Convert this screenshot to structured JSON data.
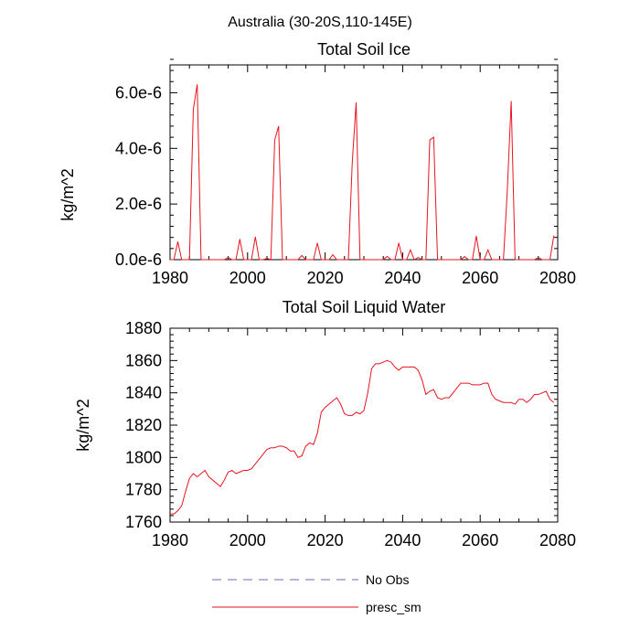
{
  "figure": {
    "title": "Australia (30-20S,110-145E)"
  },
  "chart_data": [
    {
      "type": "line",
      "title": "Total Soil Ice",
      "xlabel": "",
      "ylabel": "kg/m^2",
      "xlim": [
        1980,
        2080
      ],
      "ylim": [
        0,
        7e-06
      ],
      "xticks": [
        1980,
        2000,
        2020,
        2040,
        2060,
        2080
      ],
      "xtick_labels": [
        "1980",
        "2000",
        "2020",
        "2040",
        "2060",
        "2080"
      ],
      "yticks": [
        0,
        2e-06,
        4e-06,
        6e-06
      ],
      "ytick_labels": [
        "0.0e-6",
        "2.0e-6",
        "4.0e-6",
        "6.0e-6"
      ],
      "series": [
        {
          "name": "presc_sm",
          "color": "#e8141e",
          "x": [
            1980,
            1981,
            1982,
            1983,
            1984,
            1985,
            1986,
            1987,
            1988,
            1989,
            1990,
            1991,
            1992,
            1993,
            1994,
            1995,
            1996,
            1997,
            1998,
            1999,
            2000,
            2001,
            2002,
            2003,
            2004,
            2005,
            2006,
            2007,
            2008,
            2009,
            2010,
            2011,
            2012,
            2013,
            2014,
            2015,
            2016,
            2017,
            2018,
            2019,
            2020,
            2021,
            2022,
            2023,
            2024,
            2025,
            2026,
            2027,
            2028,
            2029,
            2030,
            2031,
            2032,
            2033,
            2034,
            2035,
            2036,
            2037,
            2038,
            2039,
            2040,
            2041,
            2042,
            2043,
            2044,
            2045,
            2046,
            2047,
            2048,
            2049,
            2050,
            2051,
            2052,
            2053,
            2054,
            2055,
            2056,
            2057,
            2058,
            2059,
            2060,
            2061,
            2062,
            2063,
            2064,
            2065,
            2066,
            2067,
            2068,
            2069,
            2070,
            2071,
            2072,
            2073,
            2074,
            2075,
            2076,
            2077,
            2078,
            2079
          ],
          "y": [
            0,
            0,
            6.5e-07,
            0,
            0,
            0,
            5.4e-06,
            6.3e-06,
            0,
            0,
            0,
            0,
            0,
            0,
            0,
            8e-08,
            0,
            0,
            7.4e-07,
            0,
            0,
            0,
            8.2e-07,
            0,
            0,
            5e-08,
            0,
            4.3e-06,
            4.8e-06,
            0,
            0,
            0,
            0,
            0,
            1.5e-07,
            0,
            0,
            0,
            6e-07,
            0,
            0,
            0,
            1.8e-07,
            0,
            0,
            0,
            0,
            3.5e-06,
            5.65e-06,
            0,
            0,
            0,
            0,
            0,
            0,
            0,
            1.2e-07,
            0,
            0,
            6e-07,
            0,
            0,
            3.5e-07,
            0,
            8e-08,
            0,
            0,
            4.3e-06,
            4.4e-06,
            0,
            0,
            0,
            0,
            0,
            0,
            0,
            1.1e-07,
            0,
            0,
            8.5e-07,
            0,
            0,
            3.5e-07,
            0,
            0,
            0,
            0,
            2.5e-06,
            5.7e-06,
            0,
            0,
            0,
            0,
            0,
            0,
            8e-08,
            0,
            0,
            0,
            8.7e-07
          ]
        }
      ]
    },
    {
      "type": "line",
      "title": "Total Soil Liquid Water",
      "xlabel": "",
      "ylabel": "kg/m^2",
      "xlim": [
        1980,
        2080
      ],
      "ylim": [
        1760,
        1880
      ],
      "xticks": [
        1980,
        2000,
        2020,
        2040,
        2060,
        2080
      ],
      "xtick_labels": [
        "1980",
        "2000",
        "2020",
        "2040",
        "2060",
        "2080"
      ],
      "yticks": [
        1760,
        1780,
        1800,
        1820,
        1840,
        1860,
        1880
      ],
      "ytick_labels": [
        "1760",
        "1780",
        "1800",
        "1820",
        "1840",
        "1860",
        "1880"
      ],
      "series": [
        {
          "name": "presc_sm",
          "color": "#e8141e",
          "x": [
            1980,
            1981,
            1982,
            1983,
            1984,
            1985,
            1986,
            1987,
            1988,
            1989,
            1990,
            1991,
            1992,
            1993,
            1994,
            1995,
            1996,
            1997,
            1998,
            1999,
            2000,
            2001,
            2002,
            2003,
            2004,
            2005,
            2006,
            2007,
            2008,
            2009,
            2010,
            2011,
            2012,
            2013,
            2014,
            2015,
            2016,
            2017,
            2018,
            2019,
            2020,
            2021,
            2022,
            2023,
            2024,
            2025,
            2026,
            2027,
            2028,
            2029,
            2030,
            2031,
            2032,
            2033,
            2034,
            2035,
            2036,
            2037,
            2038,
            2039,
            2040,
            2041,
            2042,
            2043,
            2044,
            2045,
            2046,
            2047,
            2048,
            2049,
            2050,
            2051,
            2052,
            2053,
            2054,
            2055,
            2056,
            2057,
            2058,
            2059,
            2060,
            2061,
            2062,
            2063,
            2064,
            2065,
            2066,
            2067,
            2068,
            2069,
            2070,
            2071,
            2072,
            2073,
            2074,
            2075,
            2076,
            2077,
            2078,
            2079
          ],
          "y": [
            1765,
            1765,
            1767,
            1770,
            1779,
            1787,
            1790,
            1788,
            1790,
            1792,
            1788,
            1786,
            1784,
            1782,
            1786,
            1791,
            1792,
            1790,
            1791,
            1792,
            1792,
            1793,
            1796,
            1799,
            1802,
            1805,
            1806,
            1806,
            1807,
            1807,
            1806,
            1804,
            1804,
            1800,
            1801,
            1807,
            1809,
            1808,
            1815,
            1828,
            1831,
            1833,
            1835,
            1837,
            1833,
            1827,
            1826,
            1826,
            1828,
            1827,
            1829,
            1840,
            1855,
            1858,
            1858,
            1859,
            1860,
            1859,
            1856,
            1854,
            1856,
            1856,
            1856,
            1856,
            1854,
            1848,
            1839,
            1841,
            1842,
            1837,
            1836,
            1837,
            1837,
            1840,
            1843,
            1846,
            1846,
            1846,
            1845,
            1845,
            1845,
            1846,
            1846,
            1839,
            1836,
            1835,
            1834,
            1834,
            1834,
            1833,
            1836,
            1836,
            1834,
            1836,
            1839,
            1839,
            1840,
            1841,
            1836,
            1834
          ]
        }
      ]
    }
  ],
  "legend": {
    "entries": [
      {
        "label": "No Obs",
        "color": "#6b6bc4",
        "style": "dashed"
      },
      {
        "label": "presc_sm",
        "color": "#e8141e",
        "style": "solid"
      }
    ]
  }
}
